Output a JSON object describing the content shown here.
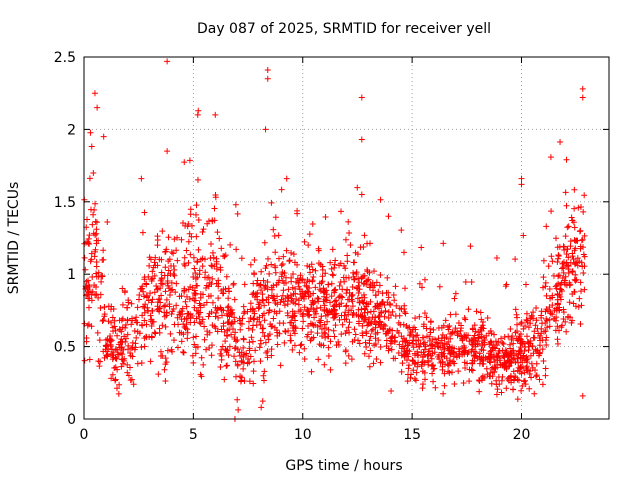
{
  "chart_data": {
    "type": "scatter",
    "title": "Day 087 of 2025, SRMTID for receiver yell",
    "xlabel": "GPS time / hours",
    "ylabel": "SRMTID / TECUs",
    "xlim": [
      0,
      24
    ],
    "ylim": [
      0,
      2.5
    ],
    "xticks": [
      0,
      5,
      10,
      15,
      20
    ],
    "xtick_labels": [
      "0",
      "5",
      "10",
      "15",
      "20"
    ],
    "yticks": [
      0,
      0.5,
      1,
      1.5,
      2,
      2.5
    ],
    "ytick_labels": [
      "0",
      "0.5",
      "1",
      "1.5",
      "2",
      "2.5"
    ],
    "grid": true,
    "marker": "+",
    "color": "#ff0000",
    "density_profile": [
      {
        "x": 0.0,
        "base": 0.95,
        "spread": 0.45
      },
      {
        "x": 0.5,
        "base": 1.15,
        "spread": 0.55
      },
      {
        "x": 1.0,
        "base": 0.6,
        "spread": 0.25
      },
      {
        "x": 1.5,
        "base": 0.45,
        "spread": 0.2
      },
      {
        "x": 2.0,
        "base": 0.55,
        "spread": 0.25
      },
      {
        "x": 3.0,
        "base": 0.8,
        "spread": 0.35
      },
      {
        "x": 4.0,
        "base": 0.85,
        "spread": 0.45
      },
      {
        "x": 5.0,
        "base": 0.9,
        "spread": 0.45
      },
      {
        "x": 6.0,
        "base": 0.95,
        "spread": 0.45
      },
      {
        "x": 7.0,
        "base": 0.5,
        "spread": 0.3
      },
      {
        "x": 8.0,
        "base": 0.7,
        "spread": 0.35
      },
      {
        "x": 9.0,
        "base": 0.85,
        "spread": 0.35
      },
      {
        "x": 10.0,
        "base": 0.8,
        "spread": 0.3
      },
      {
        "x": 11.0,
        "base": 0.75,
        "spread": 0.3
      },
      {
        "x": 12.0,
        "base": 0.8,
        "spread": 0.3
      },
      {
        "x": 13.0,
        "base": 0.8,
        "spread": 0.3
      },
      {
        "x": 14.0,
        "base": 0.65,
        "spread": 0.25
      },
      {
        "x": 15.0,
        "base": 0.5,
        "spread": 0.2
      },
      {
        "x": 16.0,
        "base": 0.45,
        "spread": 0.18
      },
      {
        "x": 17.0,
        "base": 0.5,
        "spread": 0.2
      },
      {
        "x": 18.0,
        "base": 0.5,
        "spread": 0.2
      },
      {
        "x": 19.0,
        "base": 0.38,
        "spread": 0.15
      },
      {
        "x": 20.0,
        "base": 0.45,
        "spread": 0.2
      },
      {
        "x": 21.0,
        "base": 0.6,
        "spread": 0.3
      },
      {
        "x": 22.0,
        "base": 1.0,
        "spread": 0.35
      },
      {
        "x": 22.9,
        "base": 1.15,
        "spread": 0.4
      }
    ],
    "outliers": [
      {
        "x": 3.8,
        "y": 2.47
      },
      {
        "x": 8.4,
        "y": 2.41
      },
      {
        "x": 8.4,
        "y": 2.35
      },
      {
        "x": 12.7,
        "y": 2.22
      },
      {
        "x": 22.8,
        "y": 2.28
      },
      {
        "x": 22.8,
        "y": 2.22
      },
      {
        "x": 0.5,
        "y": 2.25
      },
      {
        "x": 0.6,
        "y": 2.15
      },
      {
        "x": 8.3,
        "y": 2.0
      },
      {
        "x": 12.7,
        "y": 1.93
      },
      {
        "x": 20.0,
        "y": 1.66
      },
      {
        "x": 20.0,
        "y": 1.62
      },
      {
        "x": 8.1,
        "y": 0.08
      },
      {
        "x": 6.9,
        "y": 0.0
      },
      {
        "x": 22.8,
        "y": 0.16
      },
      {
        "x": 0.9,
        "y": 1.95
      },
      {
        "x": 5.2,
        "y": 2.1
      },
      {
        "x": 6.0,
        "y": 2.1
      },
      {
        "x": 12.7,
        "y": 1.55
      },
      {
        "x": 3.8,
        "y": 1.85
      }
    ],
    "point_count": 2200,
    "seed": 87
  }
}
